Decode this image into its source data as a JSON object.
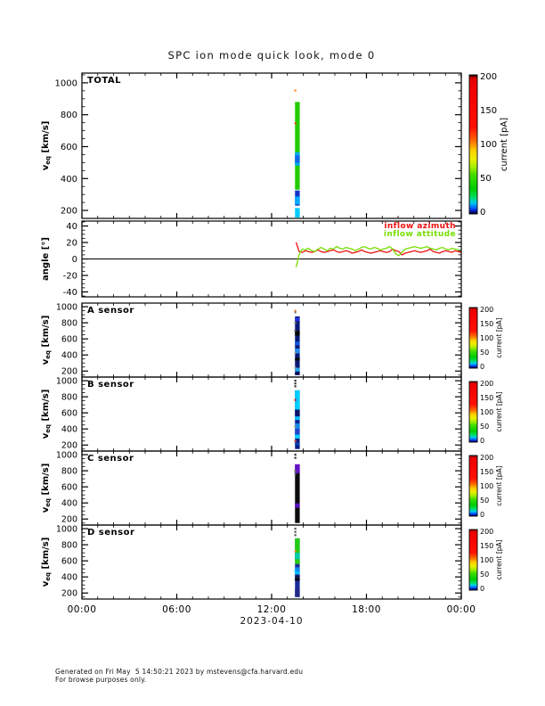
{
  "footer": {
    "line1": "Generated on Fri May  5 14:50:21 2023 by mstevens@cfa.harvard.edu",
    "line2": "For browse purposes only."
  },
  "chart_data": {
    "type": "multi-panel-timeseries",
    "title": "SPC ion mode quick look, mode 0",
    "x": {
      "range_h": [
        0,
        24
      ],
      "minor_h": 1,
      "date_label": "2023-04-10",
      "ticks": [
        {
          "h": 0,
          "label": "00:00"
        },
        {
          "h": 6,
          "label": "06:00"
        },
        {
          "h": 12,
          "label": "12:00"
        },
        {
          "h": 18,
          "label": "18:00"
        },
        {
          "h": 24,
          "label": "00:00"
        }
      ]
    },
    "colorbar": {
      "label": "current [pA]",
      "ticks": [
        0,
        50,
        100,
        150,
        200
      ],
      "range": [
        0,
        200
      ],
      "gradient": [
        [
          0,
          "#000000"
        ],
        [
          0.02,
          "#cc0000"
        ],
        [
          0.05,
          "#ee0000"
        ],
        [
          0.38,
          "#ff1100"
        ],
        [
          0.47,
          "#ff6600"
        ],
        [
          0.54,
          "#ffcc00"
        ],
        [
          0.6,
          "#eeee00"
        ],
        [
          0.66,
          "#aaee00"
        ],
        [
          0.72,
          "#44dd00"
        ],
        [
          0.82,
          "#00cc00"
        ],
        [
          0.88,
          "#00dd66"
        ],
        [
          0.92,
          "#00ccee"
        ],
        [
          0.95,
          "#0077ff"
        ],
        [
          0.975,
          "#0022dd"
        ],
        [
          1,
          "#000000"
        ]
      ]
    },
    "panels": [
      {
        "id": "total",
        "type": "scatter-column",
        "label": "TOTAL",
        "ylabel": {
          "pre": "v",
          "sub": "eq",
          "post": " [km/s]"
        },
        "yticks": [
          200,
          400,
          600,
          800,
          1000
        ],
        "yminor": 50,
        "yrange": [
          150,
          1061
        ],
        "colorbar": "large",
        "column": {
          "t": 13.63,
          "w": 0.3,
          "segments": [
            [
              330,
              880,
              "#22cc00"
            ],
            [
              480,
              565,
              "#00aaee"
            ],
            [
              500,
              545,
              "#1166ee"
            ],
            [
              230,
              325,
              "#1133cc"
            ],
            [
              237,
              287,
              "#00aaff"
            ],
            [
              150,
              215,
              "#00ccff"
            ]
          ]
        },
        "dots": [
          [
            13.5,
            952,
            "#ff8822"
          ],
          [
            13.5,
            746,
            "#ff4444"
          ]
        ]
      },
      {
        "id": "angle",
        "type": "line",
        "label": null,
        "ylabel": {
          "text": "angle [°]"
        },
        "yticks": [
          -40,
          -20,
          0,
          20,
          40
        ],
        "yminor": 5,
        "yrange": [
          -46,
          46
        ],
        "zero_line": true,
        "legend": [
          {
            "label": "inflow azimuth",
            "color": "#ee1111"
          },
          {
            "label": "inflow attitude",
            "color": "#77dd00"
          }
        ],
        "series": [
          {
            "name": "inflow-azimuth",
            "color": "#ee1111",
            "t0": 13.55,
            "dt": 0.19717,
            "values": [
              20,
              9,
              8,
              10,
              9,
              8,
              9,
              11,
              9,
              8,
              9,
              10,
              11,
              9,
              8,
              9,
              10,
              9,
              7,
              8,
              9,
              11,
              9,
              8,
              7,
              8,
              9,
              10,
              9,
              8,
              9,
              12,
              10,
              9,
              5,
              7,
              8,
              9,
              10,
              9,
              8,
              9,
              10,
              12,
              9,
              8,
              7,
              9,
              10,
              9,
              8,
              10,
              9,
              8
            ]
          },
          {
            "name": "inflow-attitude",
            "color": "#77dd00",
            "t0": 13.55,
            "dt": 0.19717,
            "values": [
              -10,
              6,
              12,
              11,
              13,
              10,
              9,
              12,
              14,
              12,
              10,
              13,
              12,
              15,
              13,
              12,
              14,
              13,
              12,
              10,
              12,
              14,
              15,
              13,
              12,
              14,
              13,
              11,
              12,
              13,
              15,
              12,
              6,
              4,
              8,
              12,
              13,
              14,
              15,
              14,
              13,
              14,
              15,
              13,
              12,
              11,
              13,
              14,
              12,
              11,
              13,
              12,
              11,
              10
            ]
          }
        ]
      },
      {
        "id": "a",
        "type": "scatter-column",
        "label": "A sensor",
        "ylabel": {
          "pre": "v",
          "sub": "eq",
          "post": " [km/s]"
        },
        "yticks": [
          200,
          400,
          600,
          800,
          1000
        ],
        "yminor": 50,
        "yrange": [
          125,
          1045
        ],
        "colorbar": "small",
        "column": {
          "t": 13.63,
          "w": 0.3,
          "segments": [
            [
              150,
              880,
              "#0a1a77"
            ],
            [
              820,
              865,
              "#2233dd"
            ],
            [
              640,
              700,
              "#060606"
            ],
            [
              520,
              565,
              "#1155dd"
            ],
            [
              420,
              480,
              "#2288ee"
            ],
            [
              330,
              365,
              "#060606"
            ],
            [
              195,
              240,
              "#22aaee"
            ],
            [
              150,
              180,
              "#0a0a55"
            ]
          ]
        },
        "dots": [
          [
            13.5,
            950,
            "#ff8822"
          ],
          [
            13.5,
            930,
            "#777777"
          ],
          [
            13.5,
            800,
            "#777777"
          ],
          [
            13.5,
            700,
            "#555555"
          ],
          [
            13.5,
            430,
            "#999999"
          ],
          [
            13.5,
            240,
            "#999999"
          ]
        ]
      },
      {
        "id": "b",
        "type": "scatter-column",
        "label": "B sensor",
        "ylabel": {
          "pre": "v",
          "sub": "eq",
          "post": " [km/s]"
        },
        "yticks": [
          200,
          400,
          600,
          800,
          1000
        ],
        "yminor": 50,
        "yrange": [
          125,
          1045
        ],
        "colorbar": "small",
        "column": {
          "t": 13.63,
          "w": 0.3,
          "segments": [
            [
              150,
              880,
              "#0a1e88"
            ],
            [
              640,
              880,
              "#00cfff"
            ],
            [
              560,
              640,
              "#0a1566"
            ],
            [
              510,
              555,
              "#00bbff"
            ],
            [
              400,
              470,
              "#1188ee"
            ],
            [
              330,
              400,
              "#2244cc"
            ],
            [
              280,
              330,
              "#00ccff"
            ],
            [
              200,
              228,
              "#1144bb"
            ]
          ]
        },
        "dots": [
          [
            13.5,
            1000,
            "#333333"
          ],
          [
            13.5,
            965,
            "#333333"
          ],
          [
            13.5,
            930,
            "#333333"
          ],
          [
            13.5,
            760,
            "#cc2222"
          ],
          [
            13.5,
            430,
            "#888888"
          ],
          [
            13.5,
            250,
            "#cc4444"
          ]
        ]
      },
      {
        "id": "c",
        "type": "scatter-column",
        "label": "C sensor",
        "ylabel": {
          "pre": "v",
          "sub": "eq",
          "post": " [km/s]"
        },
        "yticks": [
          200,
          400,
          600,
          800,
          1000
        ],
        "yminor": 50,
        "yrange": [
          125,
          1045
        ],
        "colorbar": "small",
        "column": {
          "t": 13.63,
          "w": 0.3,
          "segments": [
            [
              150,
              880,
              "#0c0c0c"
            ],
            [
              770,
              880,
              "#6611cc"
            ],
            [
              340,
              395,
              "#5511bb"
            ]
          ]
        },
        "dots": [
          [
            13.5,
            1000,
            "#333333"
          ],
          [
            13.5,
            960,
            "#333333"
          ],
          [
            13.5,
            800,
            "#666666"
          ],
          [
            13.5,
            760,
            "#666666"
          ]
        ]
      },
      {
        "id": "d",
        "type": "scatter-column",
        "label": "D sensor",
        "ylabel": {
          "pre": "v",
          "sub": "eq",
          "post": " [km/s]"
        },
        "yticks": [
          200,
          400,
          600,
          800,
          1000
        ],
        "yminor": 50,
        "yrange": [
          125,
          1045
        ],
        "colorbar": "small",
        "column": {
          "t": 13.63,
          "w": 0.3,
          "segments": [
            [
              150,
              880,
              "#1a2a99"
            ],
            [
              560,
              880,
              "#22cc11"
            ],
            [
              620,
              700,
              "#00ccaa"
            ],
            [
              470,
              520,
              "#1188ee"
            ],
            [
              430,
              470,
              "#00bbff"
            ],
            [
              350,
              420,
              "#111144"
            ],
            [
              358,
              378,
              "#060606"
            ],
            [
              150,
              250,
              "#222a88"
            ]
          ]
        },
        "dots": [
          [
            13.5,
            1000,
            "#555555"
          ],
          [
            13.5,
            960,
            "#555555"
          ],
          [
            13.5,
            920,
            "#555555"
          ],
          [
            13.5,
            720,
            "#ff8833"
          ],
          [
            13.5,
            480,
            "#00ccff"
          ]
        ]
      }
    ]
  }
}
